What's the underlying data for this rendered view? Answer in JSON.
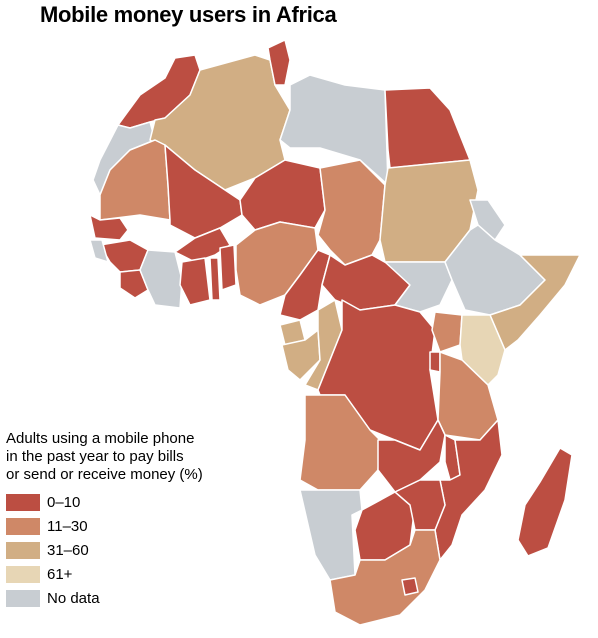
{
  "title": "Mobile money users in Africa",
  "colors": {
    "c1": "#bc4e42",
    "c2": "#cf8867",
    "c3": "#d1ae84",
    "c4": "#e7d6b5",
    "nd": "#c8cdd2"
  },
  "legend": {
    "title_lines": [
      "Adults using a mobile phone",
      "in the past year to pay bills",
      "or send or receive money (%)"
    ],
    "items": [
      {
        "label": "0–10",
        "color_key": "c1"
      },
      {
        "label": "11–30",
        "color_key": "c2"
      },
      {
        "label": "31–60",
        "color_key": "c3"
      },
      {
        "label": "61+",
        "color_key": "c4"
      },
      {
        "label": "No data",
        "color_key": "nd"
      }
    ]
  }
}
